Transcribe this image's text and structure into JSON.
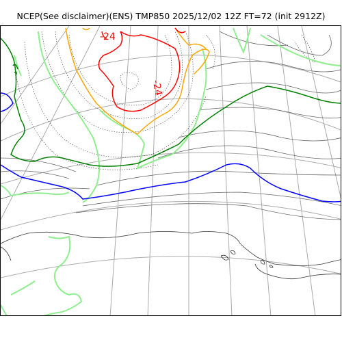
{
  "title": "NCEP(See disclaimer)(ENS) TMP850 2025/12/02 12Z FT=72 (init 2912Z)",
  "contour_labels": [
    {
      "text": "-24",
      "color": "#ff0000"
    },
    {
      "text": "-24",
      "color": "#ff0000"
    }
  ],
  "colors": {
    "red_isotherm": "#ff0000",
    "orange_isotherm": "#ffa500",
    "green_isotherm": "#008000",
    "light_green_isotherm": "#90ee90",
    "blue_isotherm": "#0000ff",
    "graticule": "#aaaaaa",
    "coastline": "#333333"
  }
}
